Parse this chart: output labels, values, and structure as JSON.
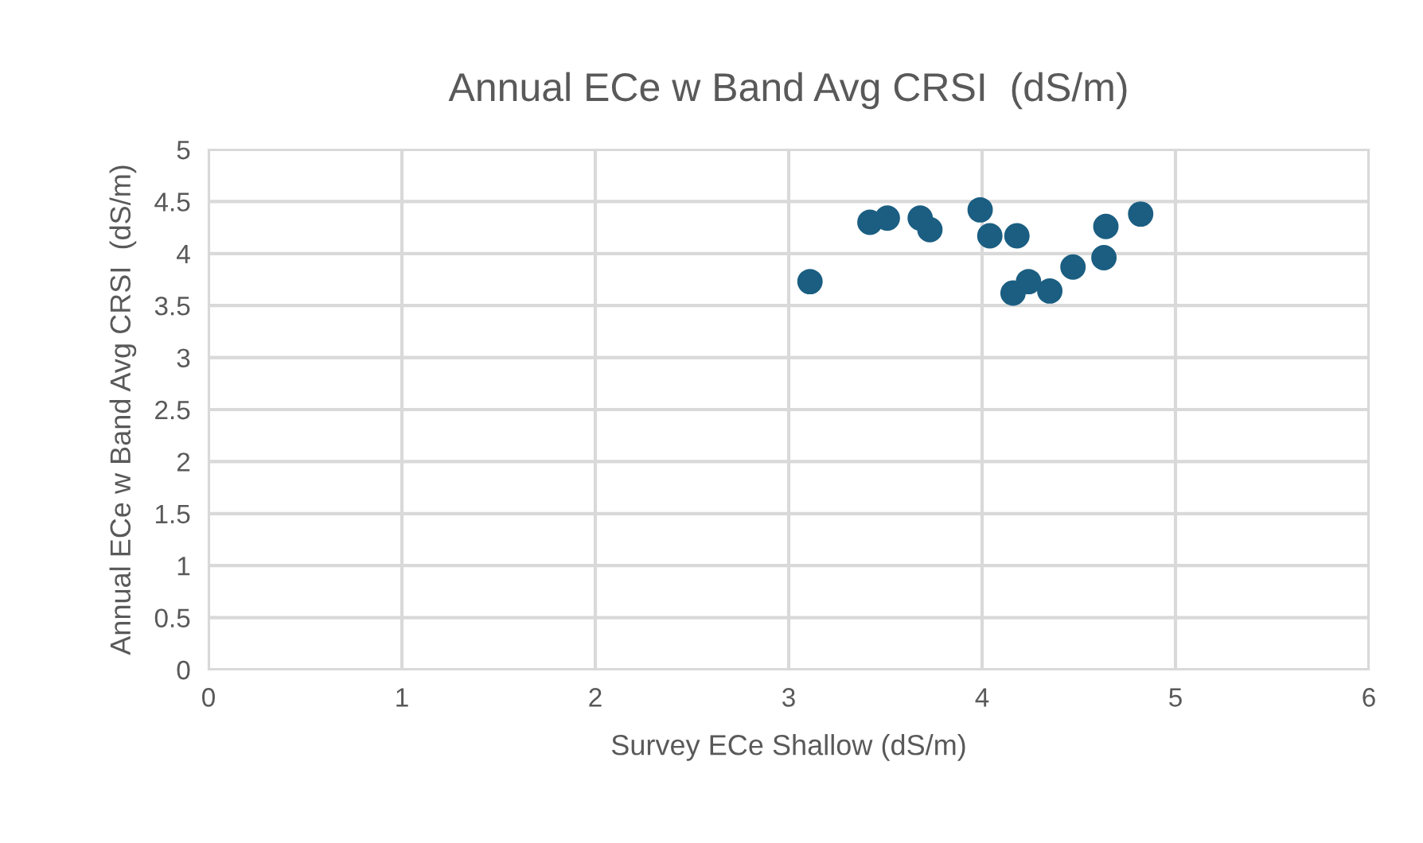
{
  "chart_data": {
    "type": "scatter",
    "title": "Annual ECe w Band Avg CRSI  (dS/m)",
    "xlabel": "Survey ECe Shallow (dS/m)",
    "ylabel": "Annual ECe w Band Avg CRSI  (dS/m)",
    "x": [
      3.11,
      3.42,
      3.51,
      3.68,
      3.73,
      3.99,
      4.04,
      4.18,
      4.16,
      4.24,
      4.35,
      4.47,
      4.63,
      4.64,
      4.82
    ],
    "series": [
      {
        "color": "#1b5e82",
        "values": [
          3.73,
          4.3,
          4.34,
          4.34,
          4.23,
          4.42,
          4.17,
          4.17,
          3.62,
          3.73,
          3.64,
          3.87,
          3.96,
          4.26,
          4.38
        ]
      }
    ],
    "xlim": [
      0,
      6
    ],
    "xticks": [
      0,
      1,
      2,
      3,
      4,
      5,
      6
    ],
    "ylim": [
      0,
      5
    ],
    "yticks": [
      0,
      0.5,
      1,
      1.5,
      2,
      2.5,
      3,
      3.5,
      4,
      4.5,
      5
    ],
    "grid": true,
    "marker": "circle"
  }
}
